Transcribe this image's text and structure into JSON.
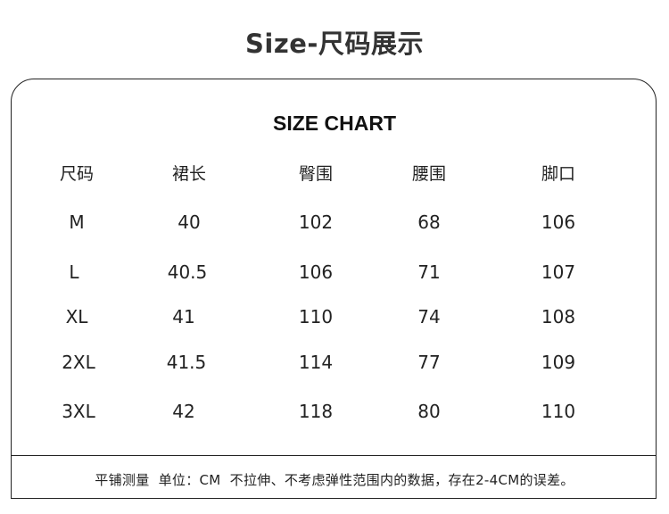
{
  "title": "Size-尺码展示",
  "subtitle": "SIZE CHART",
  "table": {
    "headers": [
      "尺码",
      "裙长",
      "臀围",
      "腰围",
      "脚口"
    ],
    "rows": [
      [
        "M",
        "40",
        "102",
        "68",
        "106"
      ],
      [
        "L",
        "40.5",
        "106",
        "71",
        "107"
      ],
      [
        "XL",
        "41",
        "110",
        "74",
        "108"
      ],
      [
        "2XL",
        "41.5",
        "114",
        "77",
        "109"
      ],
      [
        "3XL",
        "42",
        "118",
        "80",
        "110"
      ]
    ]
  },
  "note": "平铺测量  单位：CM  不拉伸、不考虑弹性范围内的数据，存在2-4CM的误差。"
}
